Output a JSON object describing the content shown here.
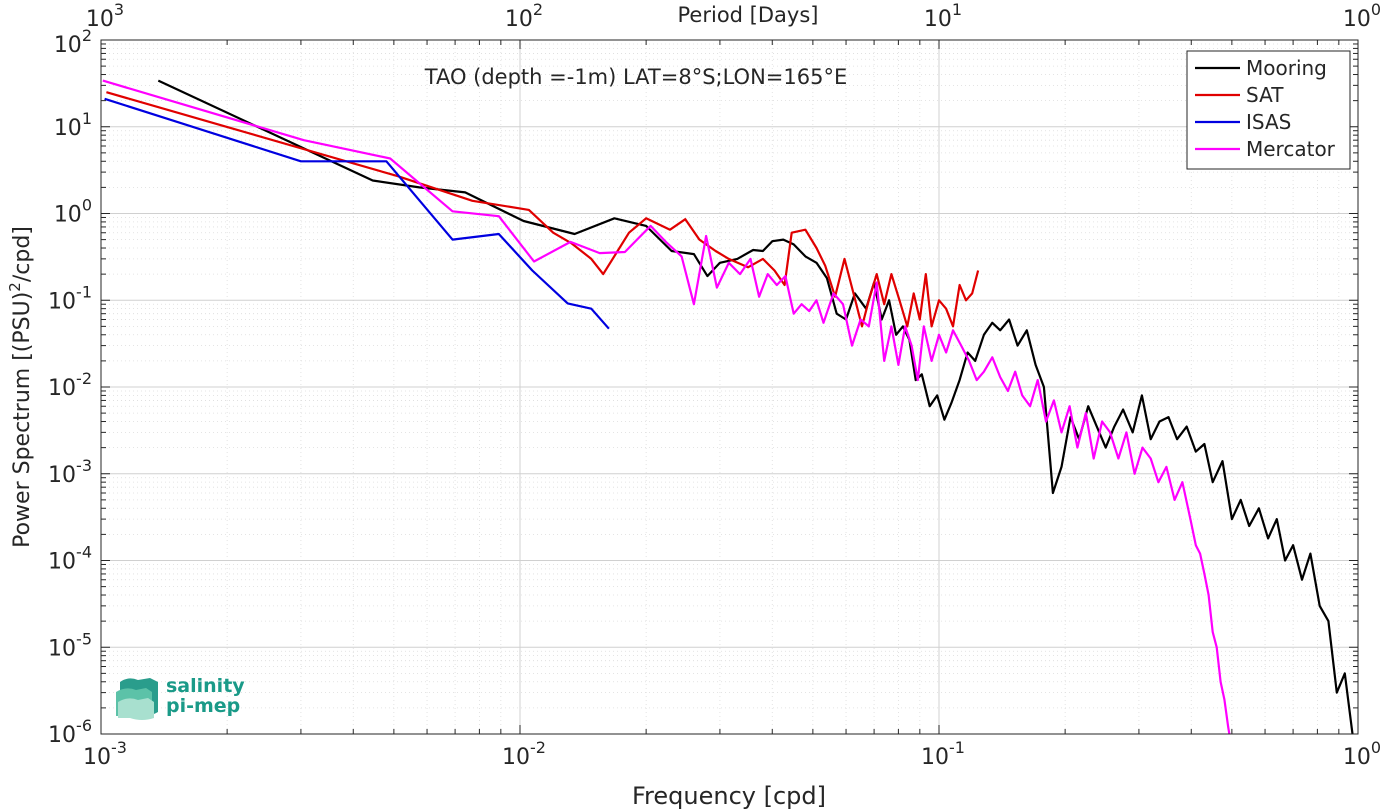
{
  "chart_data": {
    "type": "line",
    "title": "TAO (depth =-1m) LAT=8°S;LON=165°E",
    "xlabel": "Frequency [cpd]",
    "ylabel_main": "Power Spectrum [(PSU)",
    "ylabel_sup": "2",
    "ylabel_tail": "/cpd]",
    "top_axis_label": "Period [Days]",
    "x_scale": "log",
    "y_scale": "log",
    "xlim": [
      0.001,
      1
    ],
    "ylim": [
      1e-06,
      100
    ],
    "grid": true,
    "legend_position": "top-right",
    "x_ticks": [
      {
        "value": 0.001,
        "base": "10",
        "exp": "-3"
      },
      {
        "value": 0.01,
        "base": "10",
        "exp": "-2"
      },
      {
        "value": 0.1,
        "base": "10",
        "exp": "-1"
      },
      {
        "value": 1,
        "base": "10",
        "exp": "0"
      }
    ],
    "top_ticks": [
      {
        "value": 0.001,
        "base": "10",
        "exp": "3"
      },
      {
        "value": 0.01,
        "base": "10",
        "exp": "2"
      },
      {
        "value": 0.1,
        "base": "10",
        "exp": "1"
      },
      {
        "value": 1,
        "base": "10",
        "exp": "0"
      }
    ],
    "y_ticks": [
      {
        "value": 100,
        "base": "10",
        "exp": "2"
      },
      {
        "value": 10,
        "base": "10",
        "exp": "1"
      },
      {
        "value": 1,
        "base": "10",
        "exp": "0"
      },
      {
        "value": 0.1,
        "base": "10",
        "exp": "-1"
      },
      {
        "value": 0.01,
        "base": "10",
        "exp": "-2"
      },
      {
        "value": 0.001,
        "base": "10",
        "exp": "-3"
      },
      {
        "value": 0.0001,
        "base": "10",
        "exp": "-4"
      },
      {
        "value": 1e-05,
        "base": "10",
        "exp": "-5"
      },
      {
        "value": 1e-06,
        "base": "10",
        "exp": "-6"
      }
    ],
    "series": [
      {
        "name": "Mooring",
        "color": "#000000",
        "points": [
          [
            0.00137,
            34
          ],
          [
            0.00445,
            2.4
          ],
          [
            0.00575,
            2.0
          ],
          [
            0.0074,
            1.75
          ],
          [
            0.0102,
            0.82
          ],
          [
            0.0135,
            0.58
          ],
          [
            0.0168,
            0.88
          ],
          [
            0.02,
            0.72
          ],
          [
            0.023,
            0.37
          ],
          [
            0.026,
            0.34
          ],
          [
            0.028,
            0.19
          ],
          [
            0.03,
            0.27
          ],
          [
            0.033,
            0.3
          ],
          [
            0.036,
            0.38
          ],
          [
            0.038,
            0.37
          ],
          [
            0.04,
            0.48
          ],
          [
            0.0425,
            0.5
          ],
          [
            0.045,
            0.44
          ],
          [
            0.048,
            0.32
          ],
          [
            0.051,
            0.27
          ],
          [
            0.054,
            0.18
          ],
          [
            0.057,
            0.07
          ],
          [
            0.06,
            0.06
          ],
          [
            0.063,
            0.12
          ],
          [
            0.067,
            0.08
          ],
          [
            0.07,
            0.16
          ],
          [
            0.073,
            0.06
          ],
          [
            0.076,
            0.1
          ],
          [
            0.079,
            0.04
          ],
          [
            0.082,
            0.05
          ],
          [
            0.085,
            0.035
          ],
          [
            0.088,
            0.012
          ],
          [
            0.091,
            0.014
          ],
          [
            0.095,
            0.006
          ],
          [
            0.099,
            0.008
          ],
          [
            0.103,
            0.0042
          ],
          [
            0.107,
            0.0065
          ],
          [
            0.112,
            0.012
          ],
          [
            0.117,
            0.025
          ],
          [
            0.122,
            0.02
          ],
          [
            0.128,
            0.04
          ],
          [
            0.134,
            0.055
          ],
          [
            0.14,
            0.045
          ],
          [
            0.147,
            0.06
          ],
          [
            0.154,
            0.03
          ],
          [
            0.162,
            0.045
          ],
          [
            0.17,
            0.018
          ],
          [
            0.178,
            0.01
          ],
          [
            0.187,
            0.0006
          ],
          [
            0.196,
            0.0012
          ],
          [
            0.206,
            0.0045
          ],
          [
            0.216,
            0.0025
          ],
          [
            0.227,
            0.006
          ],
          [
            0.238,
            0.0035
          ],
          [
            0.25,
            0.002
          ],
          [
            0.262,
            0.0035
          ],
          [
            0.275,
            0.0055
          ],
          [
            0.29,
            0.003
          ],
          [
            0.305,
            0.008
          ],
          [
            0.32,
            0.0025
          ],
          [
            0.336,
            0.004
          ],
          [
            0.353,
            0.0045
          ],
          [
            0.37,
            0.0025
          ],
          [
            0.39,
            0.0035
          ],
          [
            0.41,
            0.0018
          ],
          [
            0.43,
            0.0022
          ],
          [
            0.45,
            0.0008
          ],
          [
            0.475,
            0.0014
          ],
          [
            0.5,
            0.0003
          ],
          [
            0.525,
            0.0005
          ],
          [
            0.55,
            0.00025
          ],
          [
            0.58,
            0.0004
          ],
          [
            0.61,
            0.00018
          ],
          [
            0.64,
            0.0003
          ],
          [
            0.67,
            0.0001
          ],
          [
            0.7,
            0.00015
          ],
          [
            0.735,
            6e-05
          ],
          [
            0.77,
            0.00012
          ],
          [
            0.81,
            3e-05
          ],
          [
            0.85,
            2e-05
          ],
          [
            0.89,
            3e-06
          ],
          [
            0.93,
            5e-06
          ],
          [
            0.97,
            1e-06
          ],
          [
            0.99,
            9e-07
          ]
        ]
      },
      {
        "name": "SAT",
        "color": "#e00000",
        "points": [
          [
            0.00103,
            25
          ],
          [
            0.0051,
            2.7
          ],
          [
            0.0077,
            1.4
          ],
          [
            0.0105,
            1.1
          ],
          [
            0.012,
            0.6
          ],
          [
            0.0133,
            0.45
          ],
          [
            0.0148,
            0.3
          ],
          [
            0.0158,
            0.2
          ],
          [
            0.0182,
            0.6
          ],
          [
            0.02,
            0.88
          ],
          [
            0.0228,
            0.65
          ],
          [
            0.0248,
            0.86
          ],
          [
            0.0268,
            0.5
          ],
          [
            0.0293,
            0.37
          ],
          [
            0.0315,
            0.3
          ],
          [
            0.035,
            0.24
          ],
          [
            0.038,
            0.3
          ],
          [
            0.0405,
            0.22
          ],
          [
            0.0428,
            0.15
          ],
          [
            0.0445,
            0.6
          ],
          [
            0.048,
            0.65
          ],
          [
            0.051,
            0.4
          ],
          [
            0.0535,
            0.25
          ],
          [
            0.0565,
            0.11
          ],
          [
            0.0595,
            0.3
          ],
          [
            0.0625,
            0.12
          ],
          [
            0.0655,
            0.05
          ],
          [
            0.068,
            0.1
          ],
          [
            0.071,
            0.2
          ],
          [
            0.074,
            0.09
          ],
          [
            0.077,
            0.2
          ],
          [
            0.0805,
            0.1
          ],
          [
            0.084,
            0.05
          ],
          [
            0.087,
            0.12
          ],
          [
            0.09,
            0.06
          ],
          [
            0.093,
            0.2
          ],
          [
            0.096,
            0.05
          ],
          [
            0.1,
            0.1
          ],
          [
            0.104,
            0.08
          ],
          [
            0.108,
            0.05
          ],
          [
            0.112,
            0.15
          ],
          [
            0.116,
            0.1
          ],
          [
            0.12,
            0.12
          ],
          [
            0.124,
            0.22
          ]
        ]
      },
      {
        "name": "ISAS",
        "color": "#0000e0",
        "points": [
          [
            0.00102,
            21
          ],
          [
            0.003,
            4
          ],
          [
            0.0048,
            4
          ],
          [
            0.0069,
            0.5
          ],
          [
            0.0089,
            0.58
          ],
          [
            0.0107,
            0.22
          ],
          [
            0.013,
            0.092
          ],
          [
            0.0148,
            0.08
          ],
          [
            0.0163,
            0.047
          ]
        ]
      },
      {
        "name": "Mercator",
        "color": "#ff00ff",
        "points": [
          [
            0.00101,
            34
          ],
          [
            0.00305,
            7
          ],
          [
            0.0049,
            4.3
          ],
          [
            0.0069,
            1.06
          ],
          [
            0.0089,
            0.93
          ],
          [
            0.0108,
            0.28
          ],
          [
            0.0132,
            0.47
          ],
          [
            0.0155,
            0.35
          ],
          [
            0.0178,
            0.36
          ],
          [
            0.0205,
            0.72
          ],
          [
            0.0223,
            0.47
          ],
          [
            0.0243,
            0.32
          ],
          [
            0.026,
            0.09
          ],
          [
            0.0278,
            0.55
          ],
          [
            0.0295,
            0.14
          ],
          [
            0.0315,
            0.27
          ],
          [
            0.0335,
            0.2
          ],
          [
            0.0355,
            0.3
          ],
          [
            0.0372,
            0.11
          ],
          [
            0.039,
            0.2
          ],
          [
            0.041,
            0.15
          ],
          [
            0.043,
            0.19
          ],
          [
            0.045,
            0.07
          ],
          [
            0.047,
            0.09
          ],
          [
            0.049,
            0.075
          ],
          [
            0.051,
            0.1
          ],
          [
            0.053,
            0.055
          ],
          [
            0.056,
            0.12
          ],
          [
            0.059,
            0.09
          ],
          [
            0.062,
            0.03
          ],
          [
            0.065,
            0.06
          ],
          [
            0.068,
            0.05
          ],
          [
            0.071,
            0.16
          ],
          [
            0.074,
            0.02
          ],
          [
            0.077,
            0.05
          ],
          [
            0.08,
            0.018
          ],
          [
            0.083,
            0.05
          ],
          [
            0.086,
            0.03
          ],
          [
            0.089,
            0.012
          ],
          [
            0.092,
            0.05
          ],
          [
            0.096,
            0.02
          ],
          [
            0.1,
            0.04
          ],
          [
            0.104,
            0.025
          ],
          [
            0.108,
            0.045
          ],
          [
            0.113,
            0.03
          ],
          [
            0.118,
            0.02
          ],
          [
            0.123,
            0.012
          ],
          [
            0.128,
            0.015
          ],
          [
            0.134,
            0.022
          ],
          [
            0.14,
            0.013
          ],
          [
            0.146,
            0.009
          ],
          [
            0.152,
            0.015
          ],
          [
            0.158,
            0.008
          ],
          [
            0.165,
            0.006
          ],
          [
            0.172,
            0.012
          ],
          [
            0.18,
            0.004
          ],
          [
            0.188,
            0.007
          ],
          [
            0.196,
            0.003
          ],
          [
            0.205,
            0.006
          ],
          [
            0.214,
            0.002
          ],
          [
            0.224,
            0.005
          ],
          [
            0.234,
            0.0015
          ],
          [
            0.245,
            0.004
          ],
          [
            0.256,
            0.003
          ],
          [
            0.268,
            0.0015
          ],
          [
            0.28,
            0.003
          ],
          [
            0.293,
            0.001
          ],
          [
            0.306,
            0.002
          ],
          [
            0.32,
            0.0015
          ],
          [
            0.334,
            0.0008
          ],
          [
            0.349,
            0.0012
          ],
          [
            0.365,
            0.0005
          ],
          [
            0.381,
            0.0008
          ],
          [
            0.398,
            0.0003
          ],
          [
            0.41,
            0.00015
          ],
          [
            0.42,
            0.00012
          ],
          [
            0.43,
            7e-05
          ],
          [
            0.44,
            4e-05
          ],
          [
            0.45,
            1.5e-05
          ],
          [
            0.46,
            1e-05
          ],
          [
            0.47,
            4e-06
          ],
          [
            0.48,
            2.5e-06
          ],
          [
            0.49,
            1.2e-06
          ],
          [
            0.495,
            9e-07
          ]
        ]
      }
    ]
  },
  "logo": {
    "line1": "salinity",
    "line2": "pi-mep",
    "color": "#1a9a88"
  }
}
